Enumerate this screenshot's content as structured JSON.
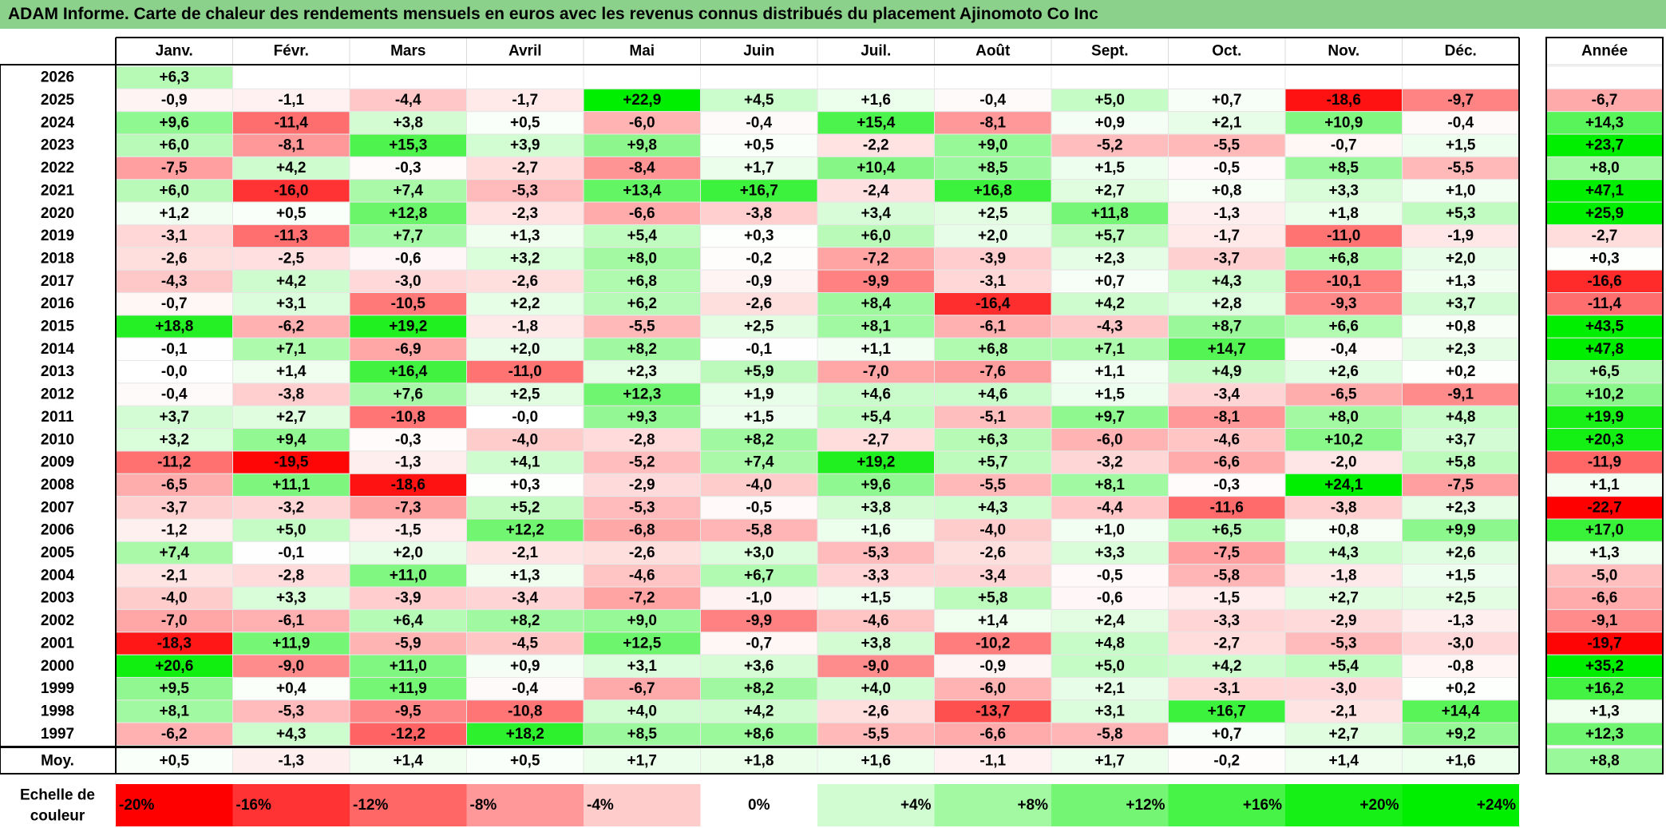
{
  "title": "ADAM Informe. Carte de chaleur des rendements mensuels en euros avec les revenus connus distribués du placement Ajinomoto Co Inc",
  "chart_data": {
    "type": "heatmap",
    "months": [
      "Janv.",
      "Févr.",
      "Mars",
      "Avril",
      "Mai",
      "Juin",
      "Juil.",
      "Août",
      "Sept.",
      "Oct.",
      "Nov.",
      "Déc."
    ],
    "year_header": "Année",
    "rows": [
      {
        "year": "2026",
        "months": [
          "+6,3",
          "",
          "",
          "",
          "",
          "",
          "",
          "",
          "",
          "",
          "",
          ""
        ],
        "total": ""
      },
      {
        "year": "2025",
        "months": [
          "-0,9",
          "-1,1",
          "-4,4",
          "-1,7",
          "+22,9",
          "+4,5",
          "+1,6",
          "-0,4",
          "+5,0",
          "+0,7",
          "-18,6",
          "-9,7"
        ],
        "total": "-6,7"
      },
      {
        "year": "2024",
        "months": [
          "+9,6",
          "-11,4",
          "+3,8",
          "+0,5",
          "-6,0",
          "-0,4",
          "+15,4",
          "-8,1",
          "+0,9",
          "+2,1",
          "+10,9",
          "-0,4"
        ],
        "total": "+14,3"
      },
      {
        "year": "2023",
        "months": [
          "+6,0",
          "-8,1",
          "+15,3",
          "+3,9",
          "+9,8",
          "+0,5",
          "-2,2",
          "+9,0",
          "-5,2",
          "-5,5",
          "-0,7",
          "+1,5"
        ],
        "total": "+23,7"
      },
      {
        "year": "2022",
        "months": [
          "-7,5",
          "+4,2",
          "-0,3",
          "-2,7",
          "-8,4",
          "+1,7",
          "+10,4",
          "+8,5",
          "+1,5",
          "-0,5",
          "+8,5",
          "-5,5"
        ],
        "total": "+8,0"
      },
      {
        "year": "2021",
        "months": [
          "+6,0",
          "-16,0",
          "+7,4",
          "-5,3",
          "+13,4",
          "+16,7",
          "-2,4",
          "+16,8",
          "+2,7",
          "+0,8",
          "+3,3",
          "+1,0"
        ],
        "total": "+47,1"
      },
      {
        "year": "2020",
        "months": [
          "+1,2",
          "+0,5",
          "+12,8",
          "-2,3",
          "-6,6",
          "-3,8",
          "+3,4",
          "+2,5",
          "+11,8",
          "-1,3",
          "+1,8",
          "+5,3"
        ],
        "total": "+25,9"
      },
      {
        "year": "2019",
        "months": [
          "-3,1",
          "-11,3",
          "+7,7",
          "+1,3",
          "+5,4",
          "+0,3",
          "+6,0",
          "+2,0",
          "+5,7",
          "-1,7",
          "-11,0",
          "-1,9"
        ],
        "total": "-2,7"
      },
      {
        "year": "2018",
        "months": [
          "-2,6",
          "-2,5",
          "-0,6",
          "+3,2",
          "+8,0",
          "-0,2",
          "-7,2",
          "-3,9",
          "+2,3",
          "-3,7",
          "+6,8",
          "+2,0"
        ],
        "total": "+0,3"
      },
      {
        "year": "2017",
        "months": [
          "-4,3",
          "+4,2",
          "-3,0",
          "-2,6",
          "+6,8",
          "-0,9",
          "-9,9",
          "-3,1",
          "+0,7",
          "+4,3",
          "-10,1",
          "+1,3"
        ],
        "total": "-16,6"
      },
      {
        "year": "2016",
        "months": [
          "-0,7",
          "+3,1",
          "-10,5",
          "+2,2",
          "+6,2",
          "-2,6",
          "+8,4",
          "-16,4",
          "+4,2",
          "+2,8",
          "-9,3",
          "+3,7"
        ],
        "total": "-11,4"
      },
      {
        "year": "2015",
        "months": [
          "+18,8",
          "-6,2",
          "+19,2",
          "-1,8",
          "-5,5",
          "+2,5",
          "+8,1",
          "-6,1",
          "-4,3",
          "+8,7",
          "+6,6",
          "+0,8"
        ],
        "total": "+43,5"
      },
      {
        "year": "2014",
        "months": [
          "-0,1",
          "+7,1",
          "-6,9",
          "+2,0",
          "+8,2",
          "-0,1",
          "+1,1",
          "+6,8",
          "+7,1",
          "+14,7",
          "-0,4",
          "+2,3"
        ],
        "total": "+47,8"
      },
      {
        "year": "2013",
        "months": [
          "-0,0",
          "+1,4",
          "+16,4",
          "-11,0",
          "+2,3",
          "+5,9",
          "-7,0",
          "-7,6",
          "+1,1",
          "+4,9",
          "+2,6",
          "+0,2"
        ],
        "total": "+6,5"
      },
      {
        "year": "2012",
        "months": [
          "-0,4",
          "-3,8",
          "+7,6",
          "+2,5",
          "+12,3",
          "+1,9",
          "+4,6",
          "+4,6",
          "+1,5",
          "-3,4",
          "-6,5",
          "-9,1"
        ],
        "total": "+10,2"
      },
      {
        "year": "2011",
        "months": [
          "+3,7",
          "+2,7",
          "-10,8",
          "-0,0",
          "+9,3",
          "+1,5",
          "+5,4",
          "-5,1",
          "+9,7",
          "-8,1",
          "+8,0",
          "+4,8"
        ],
        "total": "+19,9"
      },
      {
        "year": "2010",
        "months": [
          "+3,2",
          "+9,4",
          "-0,3",
          "-4,0",
          "-2,8",
          "+8,2",
          "-2,7",
          "+6,3",
          "-6,0",
          "-4,6",
          "+10,2",
          "+3,7"
        ],
        "total": "+20,3"
      },
      {
        "year": "2009",
        "months": [
          "-11,2",
          "-19,5",
          "-1,3",
          "+4,1",
          "-5,2",
          "+7,4",
          "+19,2",
          "+5,7",
          "-3,2",
          "-6,6",
          "-2,0",
          "+5,8"
        ],
        "total": "-11,9"
      },
      {
        "year": "2008",
        "months": [
          "-6,5",
          "+11,1",
          "-18,6",
          "+0,3",
          "-2,9",
          "-4,0",
          "+9,6",
          "-5,5",
          "+8,1",
          "-0,3",
          "+24,1",
          "-7,5"
        ],
        "total": "+1,1"
      },
      {
        "year": "2007",
        "months": [
          "-3,7",
          "-3,2",
          "-7,3",
          "+5,2",
          "-5,3",
          "-0,5",
          "+3,8",
          "+4,3",
          "-4,4",
          "-11,6",
          "-3,8",
          "+2,3"
        ],
        "total": "-22,7"
      },
      {
        "year": "2006",
        "months": [
          "-1,2",
          "+5,0",
          "-1,5",
          "+12,2",
          "-6,8",
          "-5,8",
          "+1,6",
          "-4,0",
          "+1,0",
          "+6,5",
          "+0,8",
          "+9,9"
        ],
        "total": "+17,0"
      },
      {
        "year": "2005",
        "months": [
          "+7,4",
          "-0,1",
          "+2,0",
          "-2,1",
          "-2,6",
          "+3,0",
          "-5,3",
          "-2,6",
          "+3,3",
          "-7,5",
          "+4,3",
          "+2,6"
        ],
        "total": "+1,3"
      },
      {
        "year": "2004",
        "months": [
          "-2,1",
          "-2,8",
          "+11,0",
          "+1,3",
          "-4,6",
          "+6,7",
          "-3,3",
          "-3,4",
          "-0,5",
          "-5,8",
          "-1,8",
          "+1,5"
        ],
        "total": "-5,0"
      },
      {
        "year": "2003",
        "months": [
          "-4,0",
          "+3,3",
          "-3,9",
          "-3,4",
          "-7,2",
          "-1,0",
          "+1,5",
          "+5,8",
          "-0,6",
          "-1,5",
          "+2,7",
          "+2,5"
        ],
        "total": "-6,6"
      },
      {
        "year": "2002",
        "months": [
          "-7,0",
          "-6,1",
          "+6,4",
          "+8,2",
          "+9,0",
          "-9,9",
          "-4,6",
          "+1,4",
          "+2,4",
          "-3,3",
          "-2,9",
          "-1,3"
        ],
        "total": "-9,1"
      },
      {
        "year": "2001",
        "months": [
          "-18,3",
          "+11,9",
          "-5,9",
          "-4,5",
          "+12,5",
          "-0,7",
          "+3,8",
          "-10,2",
          "+4,8",
          "-2,7",
          "-5,3",
          "-3,0"
        ],
        "total": "-19,7"
      },
      {
        "year": "2000",
        "months": [
          "+20,6",
          "-9,0",
          "+11,0",
          "+0,9",
          "+3,1",
          "+3,6",
          "-9,0",
          "-0,9",
          "+5,0",
          "+4,2",
          "+5,4",
          "-0,8"
        ],
        "total": "+35,2"
      },
      {
        "year": "1999",
        "months": [
          "+9,5",
          "+0,4",
          "+11,9",
          "-0,4",
          "-6,7",
          "+8,2",
          "+4,0",
          "-6,0",
          "+2,1",
          "-3,1",
          "-3,0",
          "+0,2"
        ],
        "total": "+16,2"
      },
      {
        "year": "1998",
        "months": [
          "+8,1",
          "-5,3",
          "-9,5",
          "-10,8",
          "+4,0",
          "+4,2",
          "-2,6",
          "-13,7",
          "+3,1",
          "+16,7",
          "-2,1",
          "+14,4"
        ],
        "total": "+1,3"
      },
      {
        "year": "1997",
        "months": [
          "-6,2",
          "+4,3",
          "-12,2",
          "+18,2",
          "+8,5",
          "+8,6",
          "-5,5",
          "-6,6",
          "-5,8",
          "+0,7",
          "+2,7",
          "+9,2"
        ],
        "total": "+12,3"
      }
    ],
    "average": {
      "label": "Moy.",
      "months": [
        "+0,5",
        "-1,3",
        "+1,4",
        "+0,5",
        "+1,7",
        "+1,8",
        "+1,6",
        "-1,1",
        "+1,7",
        "-0,2",
        "+1,4",
        "+1,6"
      ],
      "total": "+8,8"
    },
    "scale": {
      "label_line1": "Echelle de",
      "label_line2": "couleur",
      "items": [
        "-20%",
        "-16%",
        "-12%",
        "-8%",
        "-4%",
        "0%",
        "+4%",
        "+8%",
        "+12%",
        "+16%",
        "+20%",
        "+24%"
      ]
    },
    "colors": {
      "title_bg": "#8bd08b",
      "negative_max": "#ff0000",
      "neutral": "#ffffff",
      "positive_max": "#00ee00",
      "border": "#000000"
    }
  }
}
